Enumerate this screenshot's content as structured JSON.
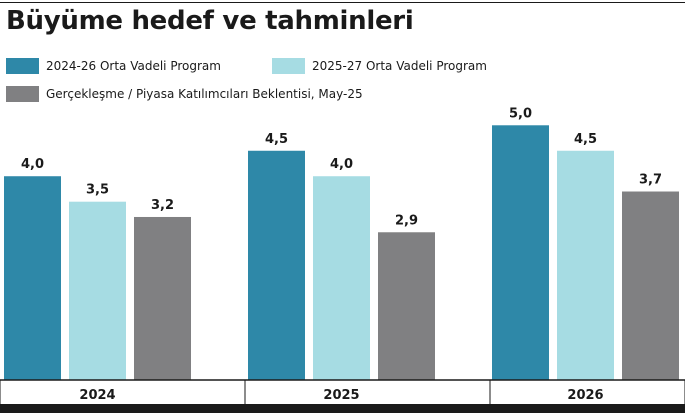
{
  "chart_data": {
    "type": "bar",
    "title": "Büyüme hedef ve tahminleri",
    "categories": [
      "2024",
      "2025",
      "2026"
    ],
    "series": [
      {
        "name": "2024-26 Orta Vadeli Program",
        "values": [
          4.0,
          4.5,
          5.0
        ],
        "labels": [
          "4,0",
          "4,5",
          "5,0"
        ],
        "color": "#2e88a8"
      },
      {
        "name": "2025-27 Orta Vadeli Program",
        "values": [
          3.5,
          4.0,
          4.5
        ],
        "labels": [
          "3,5",
          "4,0",
          "4,5"
        ],
        "color": "#a6dce3"
      },
      {
        "name": "Gerçekleşme / Piyasa Katılımcıları Beklentisi, May-25",
        "values": [
          3.2,
          2.9,
          3.7
        ],
        "labels": [
          "3,2",
          "2,9",
          "3,7"
        ],
        "color": "#808082"
      }
    ],
    "ylim": [
      0,
      5.3
    ],
    "xlabel": "",
    "ylabel": "",
    "grid": false,
    "legend_position": "top-left"
  }
}
